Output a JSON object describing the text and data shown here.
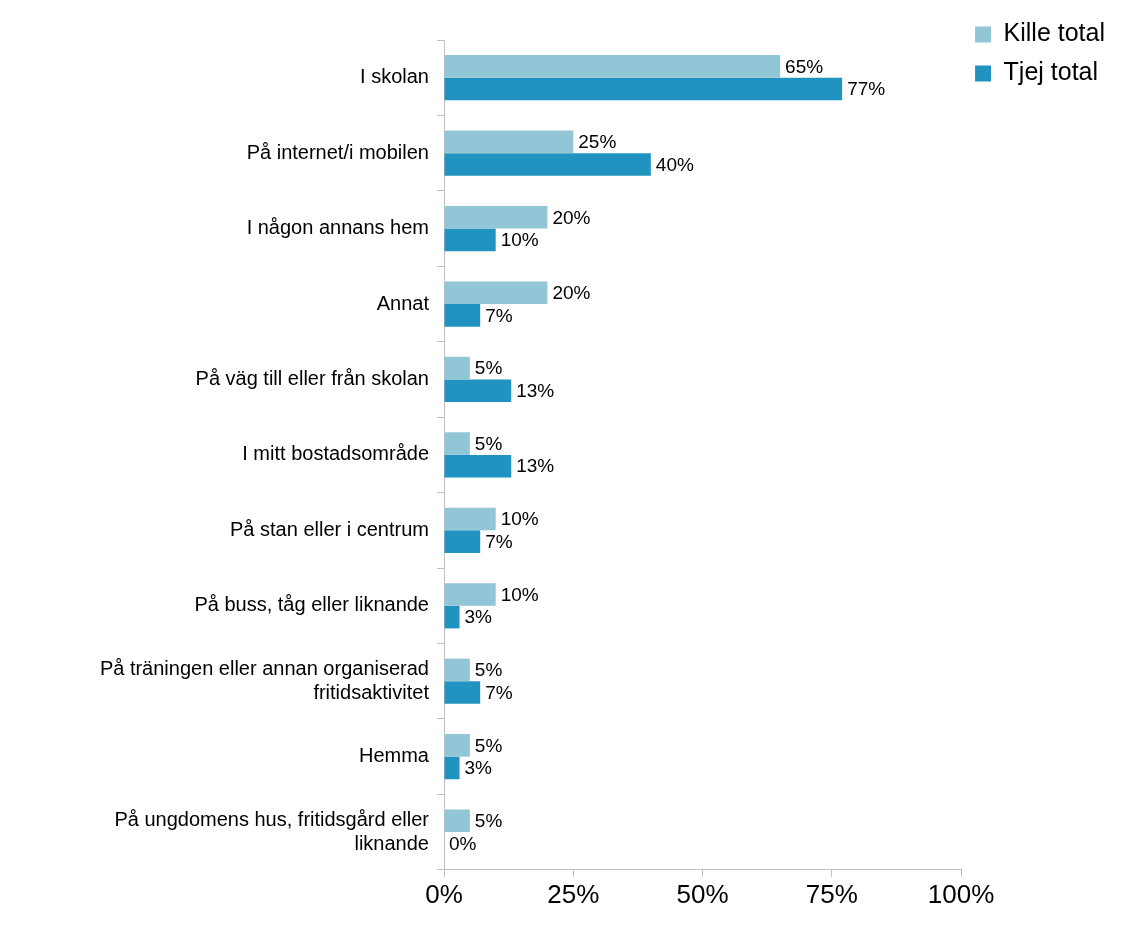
{
  "chart_data": {
    "type": "bar",
    "orientation": "horizontal",
    "categories": [
      "I skolan",
      "På internet/i mobilen",
      "I någon annans hem",
      "Annat",
      "På väg till eller från skolan",
      "I mitt bostadsområde",
      "På stan eller i centrum",
      "På buss, tåg eller liknande",
      "På träningen eller annan organiserad fritidsaktivitet",
      "Hemma",
      "På ungdomens hus, fritidsgård eller liknande"
    ],
    "series": [
      {
        "name": "Kille total",
        "color": "#92c5d6",
        "values": [
          65,
          25,
          20,
          20,
          5,
          5,
          10,
          10,
          5,
          5,
          5
        ],
        "value_labels": [
          "65%",
          "25%",
          "20%",
          "20%",
          "5%",
          "5%",
          "10%",
          "10%",
          "5%",
          "5%",
          "5%"
        ]
      },
      {
        "name": "Tjej total",
        "color": "#2093c0",
        "values": [
          77,
          40,
          10,
          7,
          13,
          13,
          7,
          3,
          7,
          3,
          0
        ],
        "value_labels": [
          "77%",
          "40%",
          "10%",
          "7%",
          "13%",
          "13%",
          "7%",
          "3%",
          "7%",
          "3%",
          "0%"
        ]
      }
    ],
    "xlim": [
      0,
      100
    ],
    "xticks": [
      {
        "value": 0,
        "label": "0%"
      },
      {
        "value": 25,
        "label": "25%"
      },
      {
        "value": 50,
        "label": "50%"
      },
      {
        "value": 75,
        "label": "75%"
      },
      {
        "value": 100,
        "label": "100%"
      }
    ],
    "legend": "top right"
  }
}
